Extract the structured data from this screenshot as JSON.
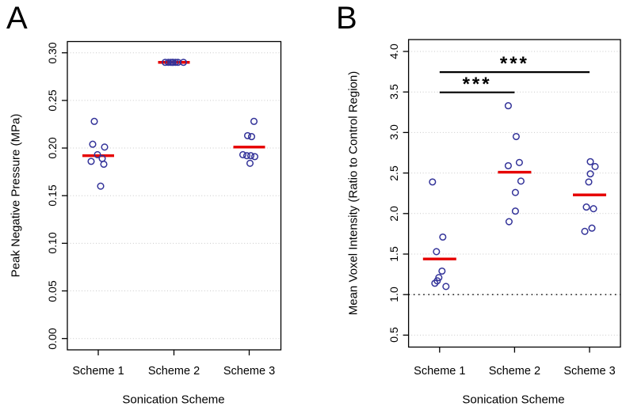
{
  "colors": {
    "point": "#333399",
    "mean_line": "#e60000",
    "grid": "#c9c9c9",
    "axis": "#000000",
    "significance": "#000000",
    "background": "#ffffff"
  },
  "chart_data": [
    {
      "type": "scatter",
      "panel_letter": "A",
      "xlabel": "Sonication Scheme",
      "ylabel": "Peak Negative Pressure (MPa)",
      "categories": [
        "Scheme 1",
        "Scheme 2",
        "Scheme 3"
      ],
      "ylim": [
        0.0,
        0.312
      ],
      "grid": "horizontal dotted at every tick",
      "legend": "none",
      "marker": "open circle",
      "mean_line_note": "red horizontal bar = group mean",
      "yticks": [
        {
          "v": 0.0,
          "label": "0.00"
        },
        {
          "v": 0.05,
          "label": "0.05"
        },
        {
          "v": 0.1,
          "label": "0.10"
        },
        {
          "v": 0.15,
          "label": "0.15"
        },
        {
          "v": 0.2,
          "label": "0.20"
        },
        {
          "v": 0.25,
          "label": "0.25"
        },
        {
          "v": 0.3,
          "label": "0.30"
        }
      ],
      "groups": [
        {
          "name": "Scheme 1",
          "mean": 0.192,
          "points": [
            {
              "v": 0.228,
              "dx": -5
            },
            {
              "v": 0.204,
              "dx": -7
            },
            {
              "v": 0.201,
              "dx": 8
            },
            {
              "v": 0.193,
              "dx": -1
            },
            {
              "v": 0.189,
              "dx": 5
            },
            {
              "v": 0.186,
              "dx": -9
            },
            {
              "v": 0.183,
              "dx": 7
            },
            {
              "v": 0.16,
              "dx": 3
            }
          ]
        },
        {
          "name": "Scheme 2",
          "mean": 0.29,
          "points": [
            {
              "v": 0.29,
              "dx": -11
            },
            {
              "v": 0.29,
              "dx": -7
            },
            {
              "v": 0.29,
              "dx": -4
            },
            {
              "v": 0.29,
              "dx": -1
            },
            {
              "v": 0.29,
              "dx": 2
            },
            {
              "v": 0.29,
              "dx": 5
            },
            {
              "v": 0.29,
              "dx": 12
            },
            {
              "v": 0.29,
              "dx": -2
            }
          ]
        },
        {
          "name": "Scheme 3",
          "mean": 0.201,
          "points": [
            {
              "v": 0.228,
              "dx": 6
            },
            {
              "v": 0.213,
              "dx": -2
            },
            {
              "v": 0.212,
              "dx": 3
            },
            {
              "v": 0.193,
              "dx": -8
            },
            {
              "v": 0.192,
              "dx": -3
            },
            {
              "v": 0.192,
              "dx": 2
            },
            {
              "v": 0.191,
              "dx": 7
            },
            {
              "v": 0.184,
              "dx": 1
            }
          ]
        }
      ]
    },
    {
      "type": "scatter",
      "panel_letter": "B",
      "xlabel": "Sonication Scheme",
      "ylabel": "Mean Voxel Intensity (Ratio to Control Region)",
      "categories": [
        "Scheme 1",
        "Scheme 2",
        "Scheme 3"
      ],
      "ylim": [
        0.43,
        4.15
      ],
      "grid": "horizontal dotted at every tick",
      "legend": "none",
      "marker": "open circle",
      "mean_line_note": "red horizontal bar = group mean",
      "reference_line": {
        "v": 1.0,
        "style": "black dotted"
      },
      "yticks": [
        {
          "v": 0.5,
          "label": "0.5"
        },
        {
          "v": 1.0,
          "label": "1.0"
        },
        {
          "v": 1.5,
          "label": "1.5"
        },
        {
          "v": 2.0,
          "label": "2.0"
        },
        {
          "v": 2.5,
          "label": "2.5"
        },
        {
          "v": 3.0,
          "label": "3.0"
        },
        {
          "v": 3.5,
          "label": "3.5"
        },
        {
          "v": 4.0,
          "label": "4.0"
        }
      ],
      "significance": [
        {
          "from": "Scheme 1",
          "to": "Scheme 3",
          "v": 3.745,
          "label": "***"
        },
        {
          "from": "Scheme 1",
          "to": "Scheme 2",
          "v": 3.495,
          "label": "***"
        }
      ],
      "groups": [
        {
          "name": "Scheme 1",
          "mean": 1.44,
          "points": [
            {
              "v": 2.39,
              "dx": -9
            },
            {
              "v": 1.71,
              "dx": 4
            },
            {
              "v": 1.53,
              "dx": -4
            },
            {
              "v": 1.29,
              "dx": 3
            },
            {
              "v": 1.21,
              "dx": -1
            },
            {
              "v": 1.17,
              "dx": -3
            },
            {
              "v": 1.14,
              "dx": -6
            },
            {
              "v": 1.1,
              "dx": 8
            }
          ]
        },
        {
          "name": "Scheme 2",
          "mean": 2.51,
          "points": [
            {
              "v": 3.33,
              "dx": -8
            },
            {
              "v": 2.95,
              "dx": 2
            },
            {
              "v": 2.63,
              "dx": 6
            },
            {
              "v": 2.59,
              "dx": -8
            },
            {
              "v": 2.4,
              "dx": 8
            },
            {
              "v": 2.26,
              "dx": 1
            },
            {
              "v": 2.03,
              "dx": 1
            },
            {
              "v": 1.9,
              "dx": -7
            }
          ]
        },
        {
          "name": "Scheme 3",
          "mean": 2.23,
          "points": [
            {
              "v": 2.64,
              "dx": 1
            },
            {
              "v": 2.58,
              "dx": 7
            },
            {
              "v": 2.49,
              "dx": 1
            },
            {
              "v": 2.39,
              "dx": -1
            },
            {
              "v": 2.08,
              "dx": -4
            },
            {
              "v": 2.06,
              "dx": 5
            },
            {
              "v": 1.82,
              "dx": 3
            },
            {
              "v": 1.78,
              "dx": -6
            }
          ]
        }
      ]
    }
  ]
}
